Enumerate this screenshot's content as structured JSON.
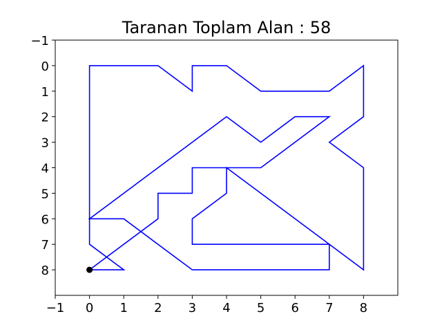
{
  "chart_data": {
    "type": "line",
    "title": "Taranan Toplam Alan : 58",
    "xlabel": "",
    "ylabel": "",
    "xlim": [
      -1,
      9
    ],
    "ylim": [
      9,
      -1
    ],
    "y_inverted": true,
    "grid": false,
    "x_ticks": [
      -1,
      0,
      1,
      2,
      3,
      4,
      5,
      6,
      7,
      8
    ],
    "x_tick_labels": [
      "−1",
      "0",
      "1",
      "2",
      "3",
      "4",
      "5",
      "6",
      "7",
      "8"
    ],
    "y_ticks": [
      -1,
      0,
      1,
      2,
      3,
      4,
      5,
      6,
      7,
      8
    ],
    "y_tick_labels": [
      "−1",
      "0",
      "1",
      "2",
      "3",
      "4",
      "5",
      "6",
      "7",
      "8"
    ],
    "series": [
      {
        "color": "#0000ff",
        "points": [
          [
            0,
            8
          ],
          [
            1,
            8
          ],
          [
            0,
            7
          ],
          [
            0,
            0
          ],
          [
            2,
            0
          ],
          [
            3,
            1
          ],
          [
            3,
            0
          ],
          [
            4,
            0
          ],
          [
            5,
            1
          ],
          [
            7,
            1
          ],
          [
            8,
            0
          ],
          [
            8,
            2
          ],
          [
            7,
            3
          ],
          [
            8,
            4
          ],
          [
            8,
            8
          ],
          [
            4,
            4
          ],
          [
            4,
            5
          ],
          [
            3,
            6
          ],
          [
            3,
            7
          ],
          [
            7,
            7
          ],
          [
            7,
            8
          ],
          [
            3,
            8
          ],
          [
            1,
            6
          ],
          [
            0,
            6
          ],
          [
            4,
            2
          ],
          [
            5,
            3
          ],
          [
            6,
            2
          ],
          [
            7,
            2
          ],
          [
            5,
            4
          ],
          [
            3,
            4
          ],
          [
            3,
            5
          ],
          [
            2,
            5
          ],
          [
            2,
            6
          ],
          [
            0,
            8
          ]
        ]
      }
    ],
    "start_marker": {
      "x": 0,
      "y": 8,
      "color": "#000000"
    }
  }
}
